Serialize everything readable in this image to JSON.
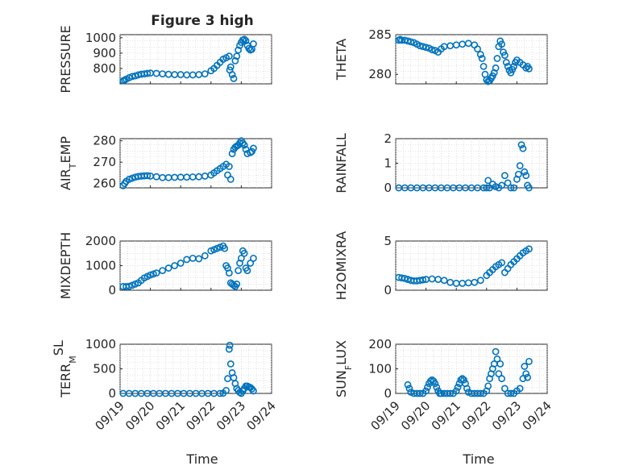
{
  "figure": {
    "title": "Figure 3 high",
    "xlabel": "Time"
  },
  "chart_data": [
    {
      "type": "scatter",
      "title": "Figure 3 high",
      "ylabel_parts": [
        {
          "t": "PRESSURE"
        }
      ],
      "xlim": [
        0,
        5
      ],
      "ylim": [
        700,
        1020
      ],
      "yticks": [
        800,
        900,
        1000
      ],
      "xticks": [
        "09/19",
        "09/20",
        "09/21",
        "09/22",
        "09/23",
        "09/24"
      ],
      "x": [
        0.1,
        0.15,
        0.2,
        0.3,
        0.4,
        0.5,
        0.6,
        0.7,
        0.8,
        0.9,
        1.0,
        1.2,
        1.4,
        1.6,
        1.8,
        2.0,
        2.2,
        2.4,
        2.6,
        2.8,
        3.0,
        3.1,
        3.2,
        3.3,
        3.4,
        3.5,
        3.6,
        3.62,
        3.65,
        3.7,
        3.75,
        3.8,
        3.85,
        3.9,
        3.95,
        4.0,
        4.05,
        4.1,
        4.15,
        4.2,
        4.25,
        4.3,
        4.35,
        4.4
      ],
      "y": [
        720,
        725,
        730,
        740,
        748,
        752,
        758,
        763,
        765,
        768,
        770,
        768,
        765,
        762,
        760,
        760,
        758,
        758,
        760,
        765,
        785,
        800,
        820,
        840,
        860,
        870,
        880,
        790,
        810,
        760,
        735,
        850,
        880,
        920,
        950,
        970,
        985,
        990,
        980,
        950,
        930,
        920,
        925,
        960
      ]
    },
    {
      "type": "scatter",
      "ylabel_parts": [
        {
          "t": "THETA"
        }
      ],
      "xlim": [
        0,
        5
      ],
      "ylim": [
        278.8,
        285
      ],
      "yticks": [
        280,
        285
      ],
      "xticks": [
        "09/19",
        "09/20",
        "09/21",
        "09/22",
        "09/23",
        "09/24"
      ],
      "x": [
        0.1,
        0.15,
        0.2,
        0.3,
        0.4,
        0.5,
        0.6,
        0.7,
        0.8,
        0.9,
        1.0,
        1.1,
        1.2,
        1.3,
        1.4,
        1.5,
        1.6,
        1.8,
        2.0,
        2.2,
        2.4,
        2.6,
        2.7,
        2.8,
        2.85,
        2.9,
        2.95,
        3.0,
        3.05,
        3.1,
        3.15,
        3.2,
        3.25,
        3.3,
        3.35,
        3.4,
        3.45,
        3.5,
        3.55,
        3.6,
        3.65,
        3.7,
        3.75,
        3.8,
        3.85,
        3.9,
        3.95,
        4.0,
        4.1,
        4.2,
        4.3,
        4.35,
        4.4
      ],
      "y": [
        284.3,
        284.4,
        284.3,
        284.3,
        284.2,
        284.1,
        284,
        283.8,
        283.6,
        283.5,
        283.4,
        283.3,
        283.1,
        283,
        282.8,
        283.2,
        283.5,
        283.6,
        283.7,
        283.8,
        283.9,
        283.7,
        283.2,
        282.5,
        282,
        281,
        280,
        279.3,
        279.1,
        279.2,
        279.5,
        279.8,
        280.2,
        280.8,
        282,
        283.5,
        284.2,
        283.8,
        282.8,
        282.4,
        281.5,
        281,
        280.5,
        280.2,
        280.6,
        281,
        281.5,
        281.8,
        281.5,
        281.2,
        280.8,
        281,
        280.7
      ]
    },
    {
      "type": "scatter",
      "ylabel_parts": [
        {
          "t": "AIR"
        },
        {
          "t": "T",
          "sub": true
        },
        {
          "t": "EMP"
        }
      ],
      "xlim": [
        0,
        5
      ],
      "ylim": [
        258,
        281
      ],
      "yticks": [
        260,
        270,
        280
      ],
      "xticks": [
        "09/19",
        "09/20",
        "09/21",
        "09/22",
        "09/23",
        "09/24"
      ],
      "x": [
        0.1,
        0.15,
        0.2,
        0.3,
        0.4,
        0.5,
        0.6,
        0.7,
        0.8,
        0.9,
        1.0,
        1.2,
        1.4,
        1.6,
        1.8,
        2.0,
        2.2,
        2.4,
        2.6,
        2.8,
        3.0,
        3.1,
        3.2,
        3.3,
        3.4,
        3.5,
        3.55,
        3.6,
        3.65,
        3.7,
        3.75,
        3.8,
        3.85,
        3.9,
        3.95,
        4.0,
        4.05,
        4.1,
        4.15,
        4.2,
        4.3,
        4.35,
        4.4
      ],
      "y": [
        259,
        260,
        261,
        262,
        262.5,
        263,
        263.3,
        263.5,
        263.6,
        263.7,
        263.5,
        263.2,
        262.8,
        262.8,
        262.9,
        263,
        263,
        263.1,
        263.2,
        263.5,
        264,
        265,
        266,
        267,
        268,
        269,
        264,
        268,
        262,
        274,
        276,
        277,
        277.5,
        278,
        279,
        280,
        279,
        278,
        276,
        274,
        274.5,
        275,
        276.5
      ]
    },
    {
      "type": "scatter",
      "ylabel_parts": [
        {
          "t": "RAINFALL"
        }
      ],
      "xlim": [
        0,
        5
      ],
      "ylim": [
        0,
        2
      ],
      "yticks": [
        0,
        1,
        2
      ],
      "xticks": [
        "09/19",
        "09/20",
        "09/21",
        "09/22",
        "09/23",
        "09/24"
      ],
      "x": [
        0.1,
        0.3,
        0.5,
        0.7,
        0.9,
        1.1,
        1.3,
        1.5,
        1.7,
        1.9,
        2.1,
        2.3,
        2.5,
        2.7,
        2.9,
        3.0,
        3.05,
        3.1,
        3.2,
        3.3,
        3.4,
        3.5,
        3.6,
        3.7,
        3.8,
        3.9,
        4.0,
        4.05,
        4.1,
        4.15,
        4.2,
        4.25,
        4.3,
        4.35,
        4.4
      ],
      "y": [
        0,
        0,
        0,
        0,
        0,
        0,
        0,
        0,
        0,
        0,
        0,
        0,
        0,
        0,
        0,
        0,
        0.3,
        0,
        0.15,
        0.05,
        0,
        0.1,
        0.5,
        0.2,
        0,
        0,
        0.35,
        0.55,
        0.9,
        1.75,
        1.6,
        0.65,
        0.5,
        0.1,
        0
      ]
    },
    {
      "type": "scatter",
      "ylabel_parts": [
        {
          "t": "MIXDEPTH"
        }
      ],
      "xlim": [
        0,
        5
      ],
      "ylim": [
        0,
        2000
      ],
      "yticks": [
        0,
        1000,
        2000
      ],
      "xticks": [
        "09/19",
        "09/20",
        "09/21",
        "09/22",
        "09/23",
        "09/24"
      ],
      "x": [
        0.1,
        0.2,
        0.3,
        0.4,
        0.5,
        0.6,
        0.7,
        0.8,
        0.9,
        1.0,
        1.1,
        1.2,
        1.4,
        1.6,
        1.8,
        2.0,
        2.2,
        2.4,
        2.6,
        2.8,
        3.0,
        3.1,
        3.2,
        3.3,
        3.4,
        3.45,
        3.5,
        3.55,
        3.6,
        3.65,
        3.7,
        3.75,
        3.8,
        3.85,
        3.9,
        3.95,
        4.0,
        4.05,
        4.1,
        4.15,
        4.2,
        4.3,
        4.4
      ],
      "y": [
        150,
        150,
        160,
        200,
        250,
        300,
        400,
        500,
        560,
        620,
        660,
        700,
        800,
        900,
        1000,
        1100,
        1250,
        1300,
        1280,
        1400,
        1600,
        1650,
        1700,
        1750,
        1800,
        1700,
        1000,
        900,
        700,
        300,
        250,
        200,
        150,
        250,
        800,
        1100,
        1300,
        1600,
        1500,
        900,
        800,
        1100,
        1300
      ]
    },
    {
      "type": "scatter",
      "ylabel_parts": [
        {
          "t": "H2OMIXRA"
        }
      ],
      "xlim": [
        0,
        5
      ],
      "ylim": [
        0,
        5
      ],
      "yticks": [
        0,
        5
      ],
      "xticks": [
        "09/19",
        "09/20",
        "09/21",
        "09/22",
        "09/23",
        "09/24"
      ],
      "x": [
        0.1,
        0.2,
        0.3,
        0.4,
        0.5,
        0.6,
        0.7,
        0.8,
        0.9,
        1.0,
        1.2,
        1.4,
        1.6,
        1.8,
        2.0,
        2.2,
        2.4,
        2.6,
        2.8,
        3.0,
        3.1,
        3.2,
        3.3,
        3.4,
        3.5,
        3.6,
        3.7,
        3.8,
        3.9,
        4.0,
        4.1,
        4.2,
        4.3,
        4.4
      ],
      "y": [
        1.3,
        1.25,
        1.2,
        1.1,
        1.0,
        0.95,
        0.95,
        1.0,
        1.05,
        1.1,
        1.15,
        1.1,
        1.0,
        0.8,
        0.7,
        0.7,
        0.75,
        0.8,
        1.0,
        1.5,
        1.8,
        2.1,
        2.4,
        2.6,
        2.8,
        1.8,
        2.2,
        2.6,
        2.9,
        3.2,
        3.5,
        3.8,
        4.0,
        4.2
      ]
    },
    {
      "type": "scatter",
      "ylabel_parts": [
        {
          "t": "TERR"
        },
        {
          "t": "M",
          "sub": true
        },
        {
          "t": "SL",
          "sup": true
        }
      ],
      "xlim": [
        0,
        5
      ],
      "ylim": [
        0,
        1000
      ],
      "yticks": [
        0,
        500,
        1000
      ],
      "xticks": [
        "09/19",
        "09/20",
        "09/21",
        "09/22",
        "09/23",
        "09/24"
      ],
      "x": [
        0.1,
        0.3,
        0.5,
        0.7,
        0.9,
        1.1,
        1.3,
        1.5,
        1.7,
        1.9,
        2.1,
        2.3,
        2.5,
        2.7,
        2.9,
        3.1,
        3.3,
        3.4,
        3.5,
        3.55,
        3.6,
        3.62,
        3.65,
        3.7,
        3.75,
        3.8,
        3.85,
        3.9,
        3.95,
        4.0,
        4.05,
        4.1,
        4.15,
        4.2,
        4.25,
        4.3,
        4.35,
        4.4
      ],
      "y": [
        0,
        0,
        0,
        0,
        0,
        0,
        0,
        0,
        0,
        0,
        0,
        0,
        0,
        0,
        0,
        0,
        0,
        5,
        60,
        300,
        900,
        980,
        600,
        420,
        320,
        200,
        100,
        60,
        20,
        0,
        50,
        100,
        150,
        150,
        130,
        120,
        90,
        50
      ]
    },
    {
      "type": "scatter",
      "ylabel_parts": [
        {
          "t": "SUN"
        },
        {
          "t": "F",
          "sub": true
        },
        {
          "t": "LUX"
        }
      ],
      "xlim": [
        0,
        5
      ],
      "ylim": [
        0,
        200
      ],
      "yticks": [
        0,
        100,
        200
      ],
      "xticks": [
        "09/19",
        "09/20",
        "09/21",
        "09/22",
        "09/23",
        "09/24"
      ],
      "x": [
        0.4,
        0.45,
        0.5,
        0.6,
        0.7,
        0.8,
        0.9,
        1.0,
        1.05,
        1.1,
        1.15,
        1.2,
        1.25,
        1.3,
        1.35,
        1.4,
        1.45,
        1.5,
        1.6,
        1.7,
        1.8,
        1.9,
        2.0,
        2.05,
        2.1,
        2.15,
        2.2,
        2.25,
        2.3,
        2.35,
        2.4,
        2.5,
        2.6,
        2.7,
        2.8,
        2.9,
        3.0,
        3.05,
        3.1,
        3.15,
        3.2,
        3.25,
        3.3,
        3.35,
        3.4,
        3.45,
        3.5,
        3.6,
        3.7,
        3.8,
        3.9,
        4.0,
        4.1,
        4.2,
        4.25,
        4.3,
        4.35,
        4.4
      ],
      "y": [
        35,
        20,
        5,
        0,
        0,
        0,
        0,
        10,
        25,
        40,
        50,
        55,
        50,
        40,
        25,
        10,
        0,
        0,
        0,
        0,
        0,
        0,
        10,
        25,
        40,
        55,
        60,
        55,
        40,
        20,
        5,
        0,
        0,
        0,
        0,
        0,
        10,
        30,
        60,
        80,
        100,
        120,
        170,
        140,
        80,
        120,
        60,
        20,
        0,
        0,
        0,
        10,
        20,
        60,
        110,
        80,
        65,
        130
      ]
    }
  ]
}
